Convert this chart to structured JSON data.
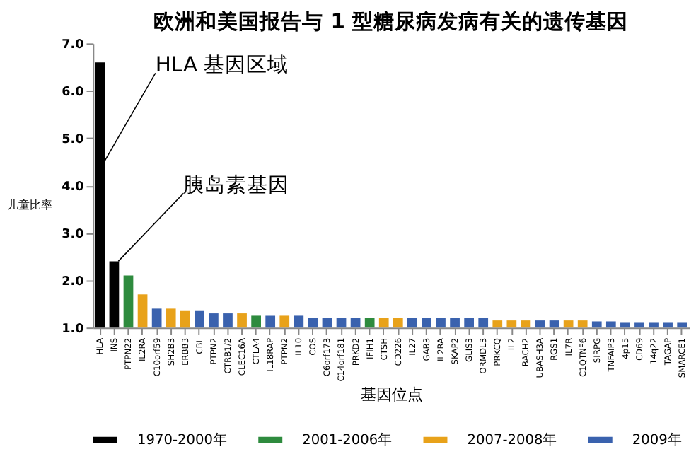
{
  "chart_data": {
    "type": "bar",
    "title": "欧洲和美国报告与 1 型糖尿病发病有关的遗传基因",
    "xlabel": "基因位点",
    "ylabel": "儿童比率",
    "categories": [
      "HLA",
      "INS",
      "PTPN22",
      "IL2RA",
      "C10orf59",
      "SH2B3",
      "ERBB3",
      "CBL",
      "PTPN2",
      "CTRB1/2",
      "CLEC16A",
      "CTLA4",
      "IL18RAP",
      "PTPN2",
      "IL10",
      "COS",
      "C6orf173",
      "C14orf181",
      "PRKD2",
      "IFIH1",
      "CTSH",
      "CD226",
      "IL27",
      "GAB3",
      "IL2RA",
      "SKAP2",
      "GLIS3",
      "ORMDL3",
      "PRKCQ",
      "IL2",
      "BACH2",
      "UBASH3A",
      "RGS1",
      "IL7R",
      "C1QTNF6",
      "SIRPG",
      "TNFAIP3",
      "4p15",
      "CD69",
      "14q22",
      "TAGAP",
      "SMARCE1"
    ],
    "series": [
      {
        "name": "1970-2000年",
        "color": "#000000",
        "values": [
          6.6,
          2.4,
          null,
          null,
          null,
          null,
          null,
          null,
          null,
          null,
          null,
          null,
          null,
          null,
          null,
          null,
          null,
          null,
          null,
          null,
          null,
          null,
          null,
          null,
          null,
          null,
          null,
          null,
          null,
          null,
          null,
          null,
          null,
          null,
          null,
          null,
          null,
          null,
          null,
          null,
          null,
          null
        ]
      },
      {
        "name": "2001-2006年",
        "color": "#2e8b3e",
        "values": [
          null,
          null,
          2.1,
          null,
          null,
          null,
          null,
          null,
          null,
          null,
          null,
          1.25,
          null,
          null,
          null,
          null,
          null,
          null,
          null,
          1.2,
          null,
          null,
          null,
          null,
          null,
          null,
          null,
          null,
          null,
          null,
          null,
          null,
          null,
          null,
          null,
          null,
          null,
          null,
          null,
          null,
          null,
          null
        ]
      },
      {
        "name": "2007-2008年",
        "color": "#e8a21a",
        "values": [
          null,
          null,
          null,
          1.7,
          null,
          1.4,
          1.35,
          null,
          null,
          null,
          1.3,
          null,
          null,
          1.25,
          null,
          null,
          null,
          null,
          null,
          null,
          1.2,
          1.2,
          null,
          null,
          null,
          null,
          null,
          null,
          1.15,
          1.15,
          1.15,
          null,
          null,
          1.15,
          1.15,
          null,
          null,
          null,
          null,
          null,
          null,
          null
        ]
      },
      {
        "name": "2009年",
        "color": "#3a62ae",
        "values": [
          null,
          null,
          null,
          null,
          1.4,
          null,
          null,
          1.35,
          1.3,
          1.3,
          null,
          null,
          1.25,
          null,
          1.25,
          1.2,
          1.2,
          1.2,
          1.2,
          null,
          null,
          null,
          1.2,
          1.2,
          1.2,
          1.2,
          1.2,
          1.2,
          null,
          null,
          null,
          1.15,
          1.15,
          null,
          null,
          1.13,
          1.13,
          1.1,
          1.1,
          1.1,
          1.1,
          1.1
        ]
      }
    ],
    "ylim": [
      1.0,
      7.0
    ],
    "yticks": [
      {
        "value": 1,
        "label": "1.0"
      },
      {
        "value": 2,
        "label": "2.0"
      },
      {
        "value": 3,
        "label": "3.0"
      },
      {
        "value": 4,
        "label": "4.0"
      },
      {
        "value": 5,
        "label": "5.0"
      },
      {
        "value": 6,
        "label": "6.0"
      },
      {
        "value": 7,
        "label": "7.0"
      }
    ],
    "grid": false,
    "legend": "bottom",
    "annotations": [
      {
        "text": "HLA 基因区域",
        "x": "HLA",
        "y": 4.5
      },
      {
        "text": "胰岛素基因",
        "x": "INS",
        "y": 2.4
      }
    ]
  }
}
